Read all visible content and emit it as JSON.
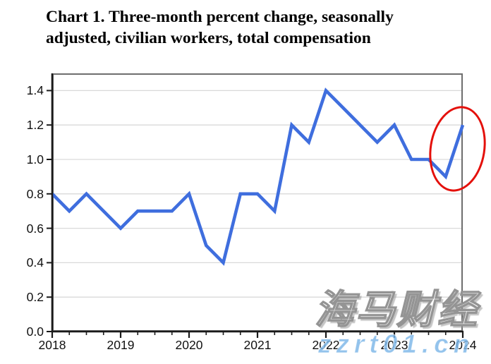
{
  "title": {
    "line1": "Chart 1. Three-month percent change, seasonally",
    "line2": "adjusted, civilian workers, total compensation"
  },
  "chart_data": {
    "type": "line",
    "title": "Chart 1. Three-month percent change, seasonally adjusted, civilian workers, total compensation",
    "x": [
      2018.0,
      2018.25,
      2018.5,
      2018.75,
      2019.0,
      2019.25,
      2019.5,
      2019.75,
      2020.0,
      2020.25,
      2020.5,
      2020.75,
      2021.0,
      2021.25,
      2021.5,
      2021.75,
      2022.0,
      2022.25,
      2022.5,
      2022.75,
      2023.0,
      2023.25,
      2023.5,
      2023.75,
      2024.0
    ],
    "values": [
      0.8,
      0.7,
      0.8,
      0.7,
      0.6,
      0.7,
      0.7,
      0.7,
      0.8,
      0.5,
      0.4,
      0.8,
      0.8,
      0.7,
      1.2,
      1.1,
      1.4,
      1.3,
      1.2,
      1.1,
      1.2,
      1.0,
      1.0,
      0.9,
      1.2
    ],
    "xlim": [
      2018,
      2024
    ],
    "ylim": [
      0,
      1.5
    ],
    "x_tick_labels": [
      "2018",
      "2019",
      "2020",
      "2021",
      "2022",
      "2023",
      "2024"
    ],
    "y_tick_labels": [
      "0.0",
      "0.2",
      "0.4",
      "0.6",
      "0.8",
      "1.0",
      "1.2",
      "1.4"
    ],
    "ytick_step": 0.2,
    "grid": "horizontal",
    "legend": "none",
    "line_color": "#3F6EDE",
    "grid_color": "#D9D9D9",
    "axis_color": "#1a1a1a",
    "frame_color": "#6e6e6e",
    "annotation": {
      "shape": "ellipse",
      "color": "#E4100B",
      "highlights": "last two data points (2023 Q4: 0.9, 2024 Q1: 1.2)"
    }
  },
  "watermark": {
    "text_cjk": "海马财经",
    "text_url": "zzrt01.cn"
  }
}
